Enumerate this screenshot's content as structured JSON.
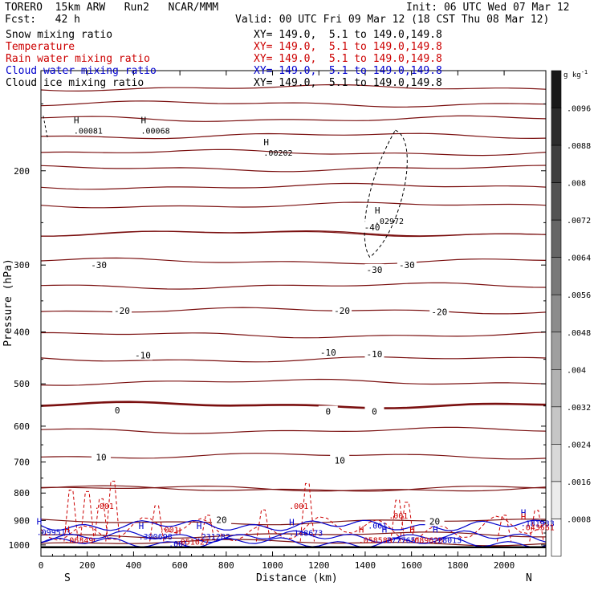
{
  "header": {
    "model": "TORERO  15km ARW   Run2   NCAR/MMM",
    "init": "Init: 06 UTC Wed 07 Mar 12",
    "fcst": "Fcst:   42 h",
    "valid": "Valid: 00 UTC Fri 09 Mar 12 (18 CST Thu 08 Mar 12)"
  },
  "fields": [
    {
      "name": "Snow mixing ratio",
      "color": "#000000",
      "xy": "XY= 149.0,  5.1 to 149.0,149.8"
    },
    {
      "name": "Temperature",
      "color": "#cc0000",
      "xy": "XY= 149.0,  5.1 to 149.0,149.8"
    },
    {
      "name": "Rain water mixing ratio",
      "color": "#cc0000",
      "xy": "XY= 149.0,  5.1 to 149.0,149.8"
    },
    {
      "name": "Cloud water mixing ratio",
      "color": "#0000cc",
      "xy": "XY= 149.0,  5.1 to 149.0,149.8"
    },
    {
      "name": "Cloud ice mixing ratio",
      "color": "#000000",
      "xy": "XY= 149.0,  5.1 to 149.0,149.8"
    }
  ],
  "chart_data": {
    "type": "contour-cross-section",
    "xlabel": "Distance (km)",
    "ylabel": "Pressure (hPa)",
    "x_ticks": [
      0,
      200,
      400,
      600,
      800,
      1000,
      1200,
      1400,
      1600,
      1800,
      2000
    ],
    "xlim": [
      0,
      2180
    ],
    "y_ticks": [
      200,
      300,
      400,
      500,
      600,
      700,
      800,
      900,
      1000
    ],
    "ylim": [
      1050,
      130
    ],
    "y_scale": "log",
    "endpoints": {
      "left": "S",
      "right": "N"
    },
    "colorbar": {
      "unit": "g kg",
      "unit_exp": "-1",
      "tick_labels": [
        ".0096",
        ".0088",
        ".008",
        ".0072",
        ".0064",
        ".0056",
        ".0048",
        ".004",
        ".0032",
        ".0024",
        ".0016",
        ".0008"
      ],
      "range": [
        0,
        0.0104
      ]
    },
    "temperature_contours": [
      {
        "label": "-40",
        "pressure": 232
      },
      {
        "label": "-30",
        "pressure": 295
      },
      {
        "label": "-20",
        "pressure": 365
      },
      {
        "label": "-10",
        "pressure": 450
      },
      {
        "label": "0",
        "pressure": 548
      },
      {
        "label": "10",
        "pressure": 682
      },
      {
        "label": "20",
        "pressure": 905
      }
    ],
    "temperature_labels": [
      {
        "text": "-30",
        "x": 250,
        "p": 300
      },
      {
        "text": "-30",
        "x": 1440,
        "p": 306
      },
      {
        "text": "-30",
        "x": 1580,
        "p": 300
      },
      {
        "text": "-40",
        "x": 1430,
        "p": 255
      },
      {
        "text": "-20",
        "x": 350,
        "p": 365
      },
      {
        "text": "-20",
        "x": 1300,
        "p": 365
      },
      {
        "text": "-20",
        "x": 1720,
        "p": 367
      },
      {
        "text": "-10",
        "x": 440,
        "p": 442
      },
      {
        "text": "-10",
        "x": 1240,
        "p": 437
      },
      {
        "text": "-10",
        "x": 1440,
        "p": 440
      },
      {
        "text": "0",
        "x": 330,
        "p": 560
      },
      {
        "text": "0",
        "x": 1240,
        "p": 563
      },
      {
        "text": "0",
        "x": 1440,
        "p": 563
      },
      {
        "text": "10",
        "x": 260,
        "p": 685
      },
      {
        "text": "10",
        "x": 1290,
        "p": 695
      },
      {
        "text": "20",
        "x": 780,
        "p": 898
      },
      {
        "text": "20",
        "x": 1700,
        "p": 903
      }
    ],
    "annotations": [
      {
        "mark": "H",
        "value": ".00081",
        "x": 190,
        "p": 168,
        "color": "#000000"
      },
      {
        "mark": "H",
        "value": ".00068",
        "x": 480,
        "p": 168,
        "color": "#000000"
      },
      {
        "mark": "H",
        "value": ".00202",
        "x": 1010,
        "p": 185,
        "color": "#000000"
      },
      {
        "mark": "H",
        "value": ".02972",
        "x": 1490,
        "p": 248,
        "color": "#000000"
      },
      {
        "mark": "",
        "value": ".001",
        "x": 280,
        "p": 845,
        "color": "#cc0000"
      },
      {
        "mark": "",
        "value": ".001",
        "x": 1120,
        "p": 845,
        "color": "#cc0000"
      },
      {
        "mark": "",
        "value": ".001",
        "x": 1550,
        "p": 880,
        "color": "#cc0000"
      },
      {
        "mark": "",
        "value": ".001",
        "x": 560,
        "p": 935,
        "color": "#cc0000"
      },
      {
        "mark": "",
        "value": ".001",
        "x": 1460,
        "p": 920,
        "color": "#0000cc"
      },
      {
        "mark": "",
        "value": ".001",
        "x": 600,
        "p": 993,
        "color": "#0000cc"
      },
      {
        "mark": "H",
        "value": ".099513",
        "x": 30,
        "p": 945,
        "color": "#0000cc"
      },
      {
        "mark": "H",
        "value": ".06349",
        "x": 150,
        "p": 978,
        "color": "#cc0000"
      },
      {
        "mark": "H",
        "value": ".390698",
        "x": 470,
        "p": 963,
        "color": "#0000cc"
      },
      {
        "mark": "H",
        "value": ".231282",
        "x": 720,
        "p": 963,
        "color": "#0000cc"
      },
      {
        "mark": "H",
        "value": ".051027",
        "x": 630,
        "p": 985,
        "color": "#cc0000"
      },
      {
        "mark": "H",
        "value": ".148673",
        "x": 1120,
        "p": 948,
        "color": "#0000cc"
      },
      {
        "mark": "H",
        "value": ".058589",
        "x": 1420,
        "p": 978,
        "color": "#cc0000"
      },
      {
        "mark": "H",
        "value": ".277765",
        "x": 1520,
        "p": 978,
        "color": "#0000cc"
      },
      {
        "mark": "H",
        "value": ".089626",
        "x": 1640,
        "p": 978,
        "color": "#cc0000"
      },
      {
        "mark": "H",
        "value": ".28013",
        "x": 1740,
        "p": 978,
        "color": "#0000cc"
      },
      {
        "mark": "H",
        "value": ".181933",
        "x": 2120,
        "p": 910,
        "color": "#0000cc"
      },
      {
        "mark": "H",
        "value": ".043561",
        "x": 2120,
        "p": 925,
        "color": "#cc0000"
      }
    ]
  }
}
